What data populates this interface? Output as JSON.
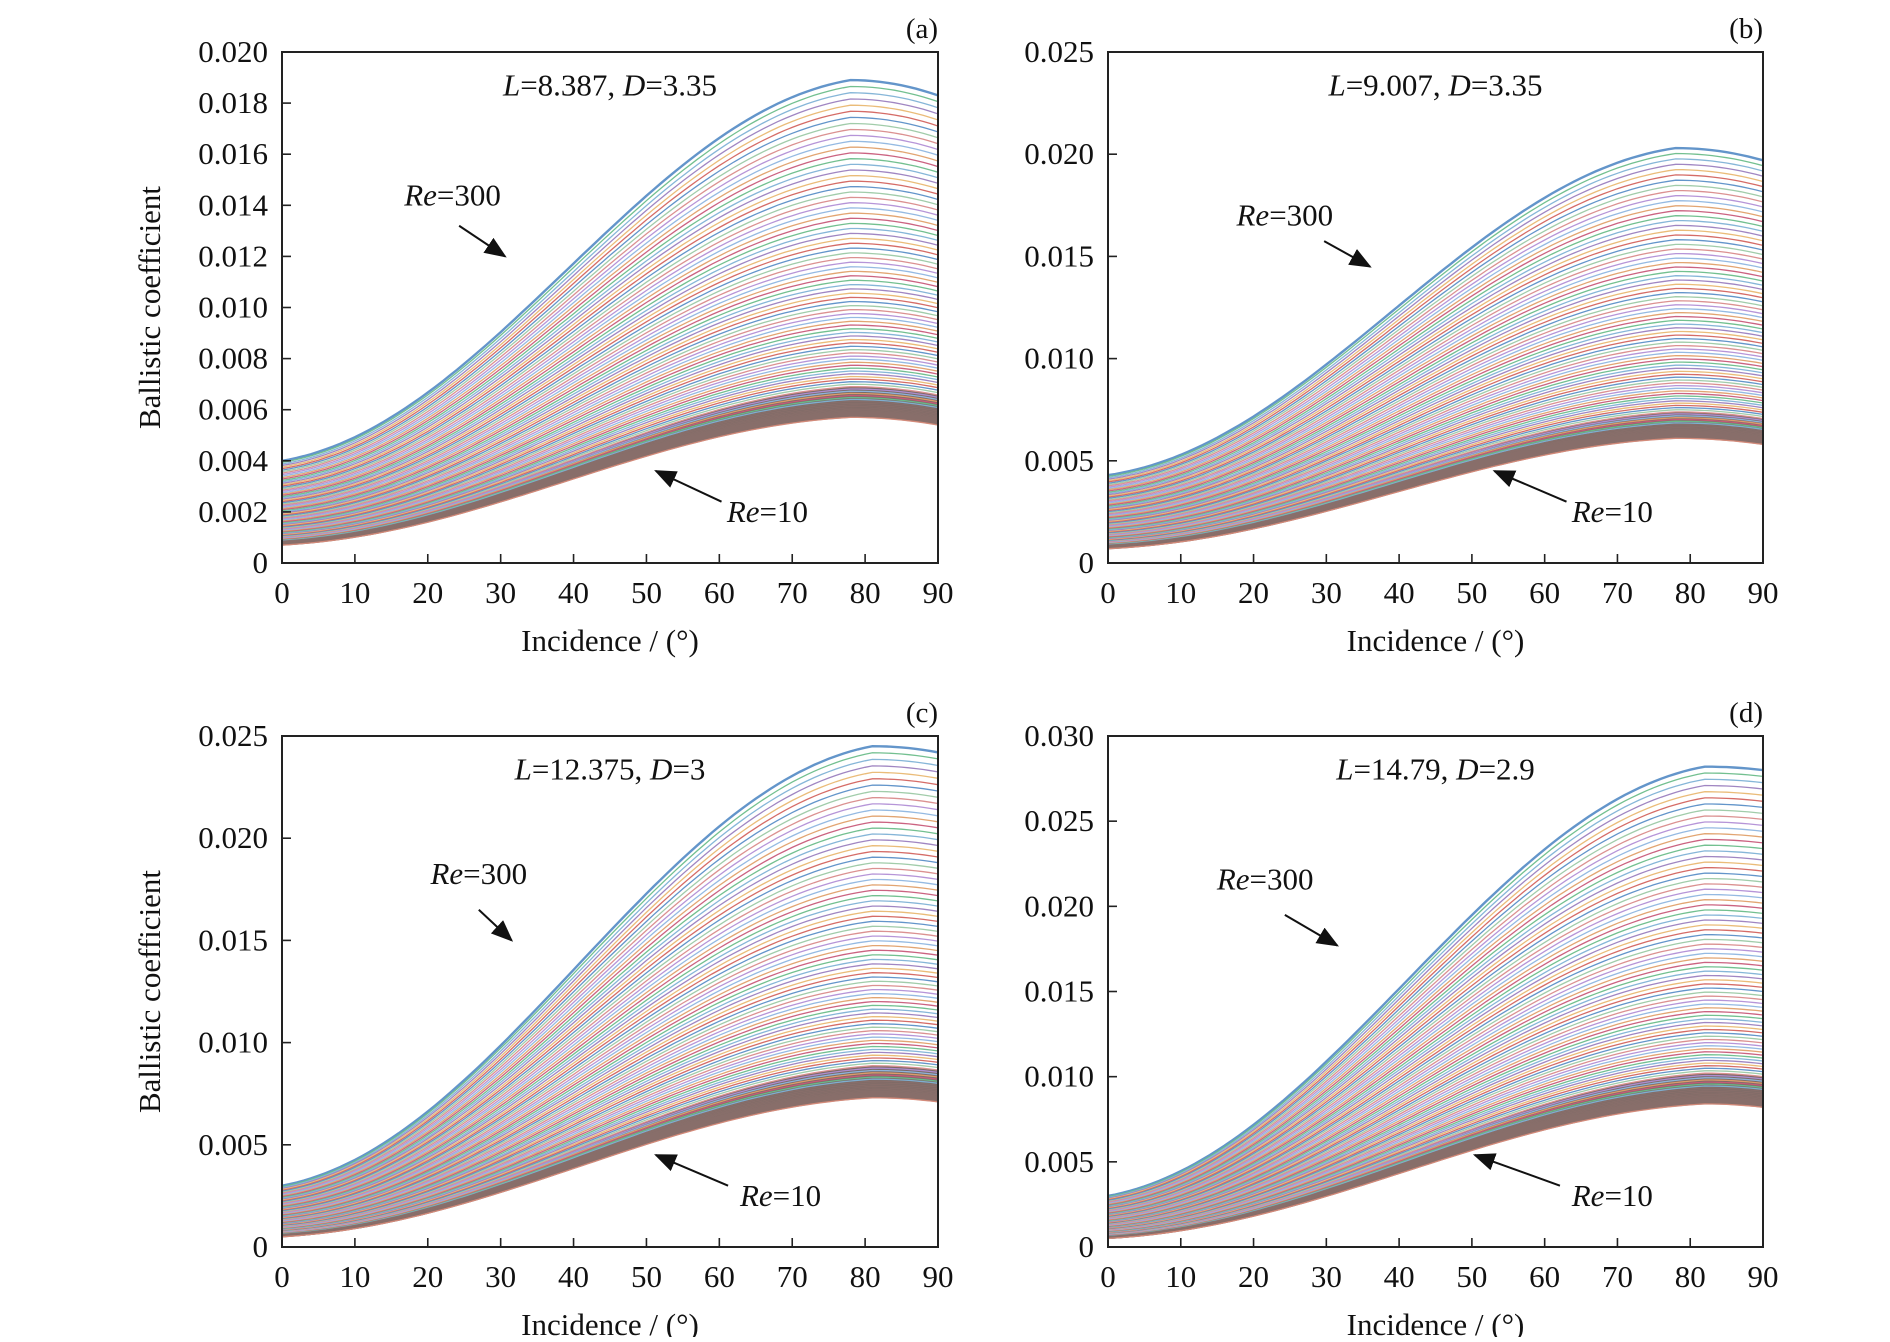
{
  "figure": {
    "colors": {
      "axis": "#222222",
      "band_fill": "#7a6a66",
      "line_palette": [
        "#5b8fc7",
        "#d3645f",
        "#e9b872",
        "#9b7fbf",
        "#7fb2d6",
        "#6cbd8a",
        "#c85b7a",
        "#e0a06a",
        "#8fb6e0",
        "#b28fd6",
        "#d98b8b",
        "#9cc9a5"
      ],
      "darkest_line": "#8a6f6a",
      "bottom_line": "#d98c7a"
    }
  },
  "chart_data": [
    {
      "type": "line",
      "panel_label": "(a)",
      "annotation_params": [
        {
          "name": "L",
          "value": "8.387"
        },
        {
          "name": "D",
          "value": "3.35"
        }
      ],
      "xlabel": "Incidence / (°)",
      "ylabel": "Ballistic coefficient",
      "xlim": [
        0,
        90
      ],
      "ylim": [
        0,
        0.02
      ],
      "x_ticks": [
        0,
        10,
        20,
        30,
        40,
        50,
        60,
        70,
        80,
        90
      ],
      "x_tick_labels": [
        "0",
        "10",
        "20",
        "30",
        "40",
        "50",
        "60",
        "70",
        "80",
        "90"
      ],
      "y_ticks": [
        0,
        0.002,
        0.004,
        0.006,
        0.008,
        0.01,
        0.012,
        0.014,
        0.016,
        0.018,
        0.02
      ],
      "y_tick_labels": [
        "0",
        "0.002",
        "0.004",
        "0.006",
        "0.008",
        "0.010",
        "0.012",
        "0.014",
        "0.016",
        "0.018",
        "0.020"
      ],
      "series_parameter": "Re",
      "re_range": [
        10,
        300
      ],
      "peak_angle": 78,
      "series": [
        {
          "re": 300,
          "values_at_0_78_90": [
            0.004,
            0.0189,
            0.0183
          ]
        },
        {
          "re": 10,
          "values_at_0_78_90": [
            0.0007,
            0.0057,
            0.0054
          ]
        }
      ],
      "annotations": [
        {
          "re_label": "Re",
          "value_label": "300",
          "points_to": "top curve",
          "position": "upper-left"
        },
        {
          "re_label": "Re",
          "value_label": "10",
          "points_to": "bottom curve",
          "position": "lower-middle"
        }
      ]
    },
    {
      "type": "line",
      "panel_label": "(b)",
      "annotation_params": [
        {
          "name": "L",
          "value": "9.007"
        },
        {
          "name": "D",
          "value": "3.35"
        }
      ],
      "xlabel": "Incidence / (°)",
      "ylabel": "",
      "xlim": [
        0,
        90
      ],
      "ylim": [
        0,
        0.025
      ],
      "x_ticks": [
        0,
        10,
        20,
        30,
        40,
        50,
        60,
        70,
        80,
        90
      ],
      "x_tick_labels": [
        "0",
        "10",
        "20",
        "30",
        "40",
        "50",
        "60",
        "70",
        "80",
        "90"
      ],
      "y_ticks": [
        0,
        0.005,
        0.01,
        0.015,
        0.02,
        0.025
      ],
      "y_tick_labels": [
        "0",
        "0.005",
        "0.010",
        "0.015",
        "0.020",
        "0.025"
      ],
      "series_parameter": "Re",
      "re_range": [
        10,
        300
      ],
      "peak_angle": 78,
      "series": [
        {
          "re": 300,
          "values_at_0_78_90": [
            0.0043,
            0.0203,
            0.0197
          ]
        },
        {
          "re": 10,
          "values_at_0_78_90": [
            0.0007,
            0.0061,
            0.0058
          ]
        }
      ],
      "annotations": [
        {
          "re_label": "Re",
          "value_label": "300",
          "points_to": "top curve",
          "position": "upper-left"
        },
        {
          "re_label": "Re",
          "value_label": "10",
          "points_to": "bottom curve",
          "position": "lower-middle"
        }
      ]
    },
    {
      "type": "line",
      "panel_label": "(c)",
      "annotation_params": [
        {
          "name": "L",
          "value": "12.375"
        },
        {
          "name": "D",
          "value": "3"
        }
      ],
      "xlabel": "Incidence / (°)",
      "ylabel": "Ballistic coefficient",
      "xlim": [
        0,
        90
      ],
      "ylim": [
        0,
        0.025
      ],
      "x_ticks": [
        0,
        10,
        20,
        30,
        40,
        50,
        60,
        70,
        80,
        90
      ],
      "x_tick_labels": [
        "0",
        "10",
        "20",
        "30",
        "40",
        "50",
        "60",
        "70",
        "80",
        "90"
      ],
      "y_ticks": [
        0,
        0.005,
        0.01,
        0.015,
        0.02,
        0.025
      ],
      "y_tick_labels": [
        "0",
        "0.005",
        "0.010",
        "0.015",
        "0.020",
        "0.025"
      ],
      "series_parameter": "Re",
      "re_range": [
        10,
        300
      ],
      "peak_angle": 81,
      "series": [
        {
          "re": 300,
          "values_at_0_81_90": [
            0.003,
            0.0245,
            0.0242
          ]
        },
        {
          "re": 10,
          "values_at_0_81_90": [
            0.0005,
            0.0073,
            0.0071
          ]
        }
      ],
      "annotations": [
        {
          "re_label": "Re",
          "value_label": "300",
          "points_to": "top curve",
          "position": "upper-left"
        },
        {
          "re_label": "Re",
          "value_label": "10",
          "points_to": "bottom curve",
          "position": "lower-middle"
        }
      ]
    },
    {
      "type": "line",
      "panel_label": "(d)",
      "annotation_params": [
        {
          "name": "L",
          "value": "14.79"
        },
        {
          "name": "D",
          "value": "2.9"
        }
      ],
      "xlabel": "Incidence / (°)",
      "ylabel": "",
      "xlim": [
        0,
        90
      ],
      "ylim": [
        0,
        0.03
      ],
      "x_ticks": [
        0,
        10,
        20,
        30,
        40,
        50,
        60,
        70,
        80,
        90
      ],
      "x_tick_labels": [
        "0",
        "10",
        "20",
        "30",
        "40",
        "50",
        "60",
        "70",
        "80",
        "90"
      ],
      "y_ticks": [
        0,
        0.005,
        0.01,
        0.015,
        0.02,
        0.025,
        0.03
      ],
      "y_tick_labels": [
        "0",
        "0.005",
        "0.010",
        "0.015",
        "0.020",
        "0.025",
        "0.030"
      ],
      "series_parameter": "Re",
      "re_range": [
        10,
        300
      ],
      "peak_angle": 82,
      "series": [
        {
          "re": 300,
          "values_at_0_82_90": [
            0.003,
            0.0282,
            0.028
          ]
        },
        {
          "re": 10,
          "values_at_0_82_90": [
            0.0005,
            0.0084,
            0.0082
          ]
        }
      ],
      "annotations": [
        {
          "re_label": "Re",
          "value_label": "300",
          "points_to": "top curve",
          "position": "upper-left"
        },
        {
          "re_label": "Re",
          "value_label": "10",
          "points_to": "bottom curve",
          "position": "lower-middle"
        }
      ]
    }
  ]
}
